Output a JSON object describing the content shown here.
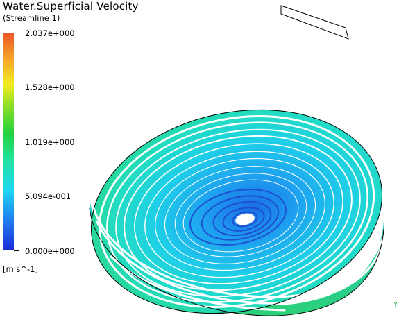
{
  "title": "Water.Superficial  Velocity",
  "subtitle": "(Streamline  1)",
  "legend": {
    "ticks": [
      "2.037e+000",
      "1.528e+000",
      "1.019e+000",
      "5.094e-001",
      "0.000e+000"
    ],
    "units": "[m  s^-1]",
    "colors": [
      "#ec5428",
      "#f2ec22",
      "#22d23c",
      "#1fd8f0",
      "#1c2bd8"
    ]
  },
  "axis_indicator": "Y",
  "scene": {
    "outline_color": "#000000",
    "inner_vortex_color": "#1f4fd0",
    "mid_stream_color": "#2fb8f0",
    "outer_stream_color": "#2cd890"
  }
}
